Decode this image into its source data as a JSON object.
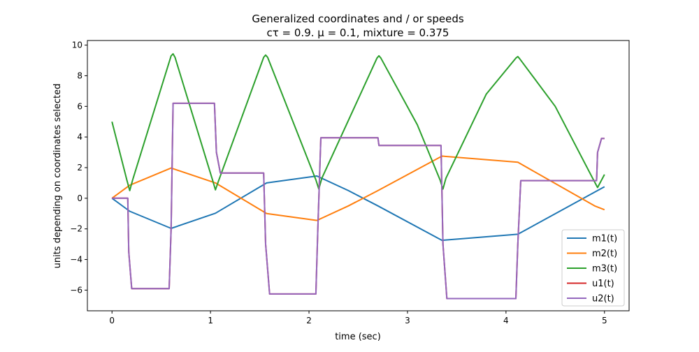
{
  "chart_data": {
    "type": "line",
    "title": "Generalized coordinates and / or speeds",
    "subtitle": "cτ = 0.9. μ = 0.1, mixture = 0.375",
    "xlabel": "time (sec)",
    "ylabel": "units depending on coordinates selected",
    "xlim": [
      -0.25,
      5.25
    ],
    "ylim": [
      -7.35,
      10.3
    ],
    "xticks": [
      0,
      1,
      2,
      3,
      4,
      5
    ],
    "yticks": [
      -6,
      -4,
      -2,
      0,
      2,
      4,
      6,
      8,
      10
    ],
    "grid": false,
    "legend": "lower right",
    "series": [
      {
        "name": "m1(t)",
        "color": "#1f77b4",
        "points": [
          [
            0,
            0
          ],
          [
            0.18,
            -0.85
          ],
          [
            0.6,
            -1.97
          ],
          [
            1.05,
            -0.98
          ],
          [
            1.57,
            1.0
          ],
          [
            2.08,
            1.45
          ],
          [
            2.4,
            0.5
          ],
          [
            2.7,
            -0.5
          ],
          [
            3.35,
            -2.75
          ],
          [
            4.12,
            -2.35
          ],
          [
            5,
            0.75
          ]
        ]
      },
      {
        "name": "m2(t)",
        "color": "#ff7f0e",
        "points": [
          [
            0,
            0
          ],
          [
            0.18,
            0.85
          ],
          [
            0.6,
            1.97
          ],
          [
            1.05,
            1.0
          ],
          [
            1.57,
            -1.0
          ],
          [
            2.08,
            -1.45
          ],
          [
            2.4,
            -0.5
          ],
          [
            2.7,
            0.5
          ],
          [
            3.35,
            2.75
          ],
          [
            4.12,
            2.35
          ],
          [
            4.9,
            -0.5
          ],
          [
            5,
            -0.75
          ]
        ]
      },
      {
        "name": "m3(t)",
        "color": "#2ca02c",
        "points": [
          [
            0,
            5
          ],
          [
            0.15,
            1.2
          ],
          [
            0.18,
            0.5
          ],
          [
            0.21,
            1.2
          ],
          [
            0.6,
            9.3
          ],
          [
            0.62,
            9.43
          ],
          [
            0.64,
            9.2
          ],
          [
            1.02,
            1.2
          ],
          [
            1.05,
            0.55
          ],
          [
            1.08,
            1.1
          ],
          [
            1.54,
            9.2
          ],
          [
            1.56,
            9.35
          ],
          [
            1.58,
            9.2
          ],
          [
            2.07,
            1.2
          ],
          [
            2.1,
            0.6
          ],
          [
            2.13,
            1.3
          ],
          [
            2.69,
            9.15
          ],
          [
            2.71,
            9.3
          ],
          [
            2.73,
            9.15
          ],
          [
            3.1,
            4.8
          ],
          [
            3.33,
            1.2
          ],
          [
            3.36,
            0.6
          ],
          [
            3.39,
            1.3
          ],
          [
            3.8,
            6.8
          ],
          [
            4.1,
            9.15
          ],
          [
            4.12,
            9.25
          ],
          [
            4.14,
            9.1
          ],
          [
            4.5,
            6.0
          ],
          [
            4.88,
            1.3
          ],
          [
            4.93,
            0.7
          ],
          [
            5,
            1.55
          ]
        ]
      },
      {
        "name": "u1(t)",
        "color": "#d62728",
        "points": [
          [
            0,
            0
          ],
          [
            0.16,
            0
          ],
          [
            0.17,
            -3.5
          ],
          [
            0.2,
            -5.9
          ],
          [
            0.58,
            -5.9
          ],
          [
            0.6,
            -2
          ],
          [
            0.62,
            6.2
          ],
          [
            1.04,
            6.2
          ],
          [
            1.06,
            3
          ],
          [
            1.1,
            1.65
          ],
          [
            1.54,
            1.65
          ],
          [
            1.56,
            -3
          ],
          [
            1.6,
            -6.25
          ],
          [
            2.07,
            -6.25
          ],
          [
            2.09,
            -2
          ],
          [
            2.12,
            3.95
          ],
          [
            2.7,
            3.95
          ],
          [
            2.71,
            3.45
          ],
          [
            3.34,
            3.45
          ],
          [
            3.36,
            -3
          ],
          [
            3.4,
            -6.55
          ],
          [
            4.1,
            -6.55
          ],
          [
            4.12,
            -3
          ],
          [
            4.15,
            1.15
          ],
          [
            4.92,
            1.15
          ],
          [
            4.93,
            3
          ],
          [
            4.97,
            3.9
          ],
          [
            5,
            3.9
          ]
        ]
      },
      {
        "name": "u2(t)",
        "color": "#9467bd",
        "points": [
          [
            0,
            0
          ],
          [
            0.16,
            0
          ],
          [
            0.17,
            -3.5
          ],
          [
            0.2,
            -5.9
          ],
          [
            0.58,
            -5.9
          ],
          [
            0.6,
            -2
          ],
          [
            0.62,
            6.2
          ],
          [
            1.04,
            6.2
          ],
          [
            1.06,
            3
          ],
          [
            1.1,
            1.65
          ],
          [
            1.54,
            1.65
          ],
          [
            1.56,
            -3
          ],
          [
            1.6,
            -6.25
          ],
          [
            2.07,
            -6.25
          ],
          [
            2.09,
            -2
          ],
          [
            2.12,
            3.95
          ],
          [
            2.7,
            3.95
          ],
          [
            2.71,
            3.45
          ],
          [
            3.34,
            3.45
          ],
          [
            3.36,
            -3
          ],
          [
            3.4,
            -6.55
          ],
          [
            4.1,
            -6.55
          ],
          [
            4.12,
            -3
          ],
          [
            4.15,
            1.15
          ],
          [
            4.92,
            1.15
          ],
          [
            4.93,
            3
          ],
          [
            4.97,
            3.9
          ],
          [
            5,
            3.9
          ]
        ]
      }
    ]
  }
}
